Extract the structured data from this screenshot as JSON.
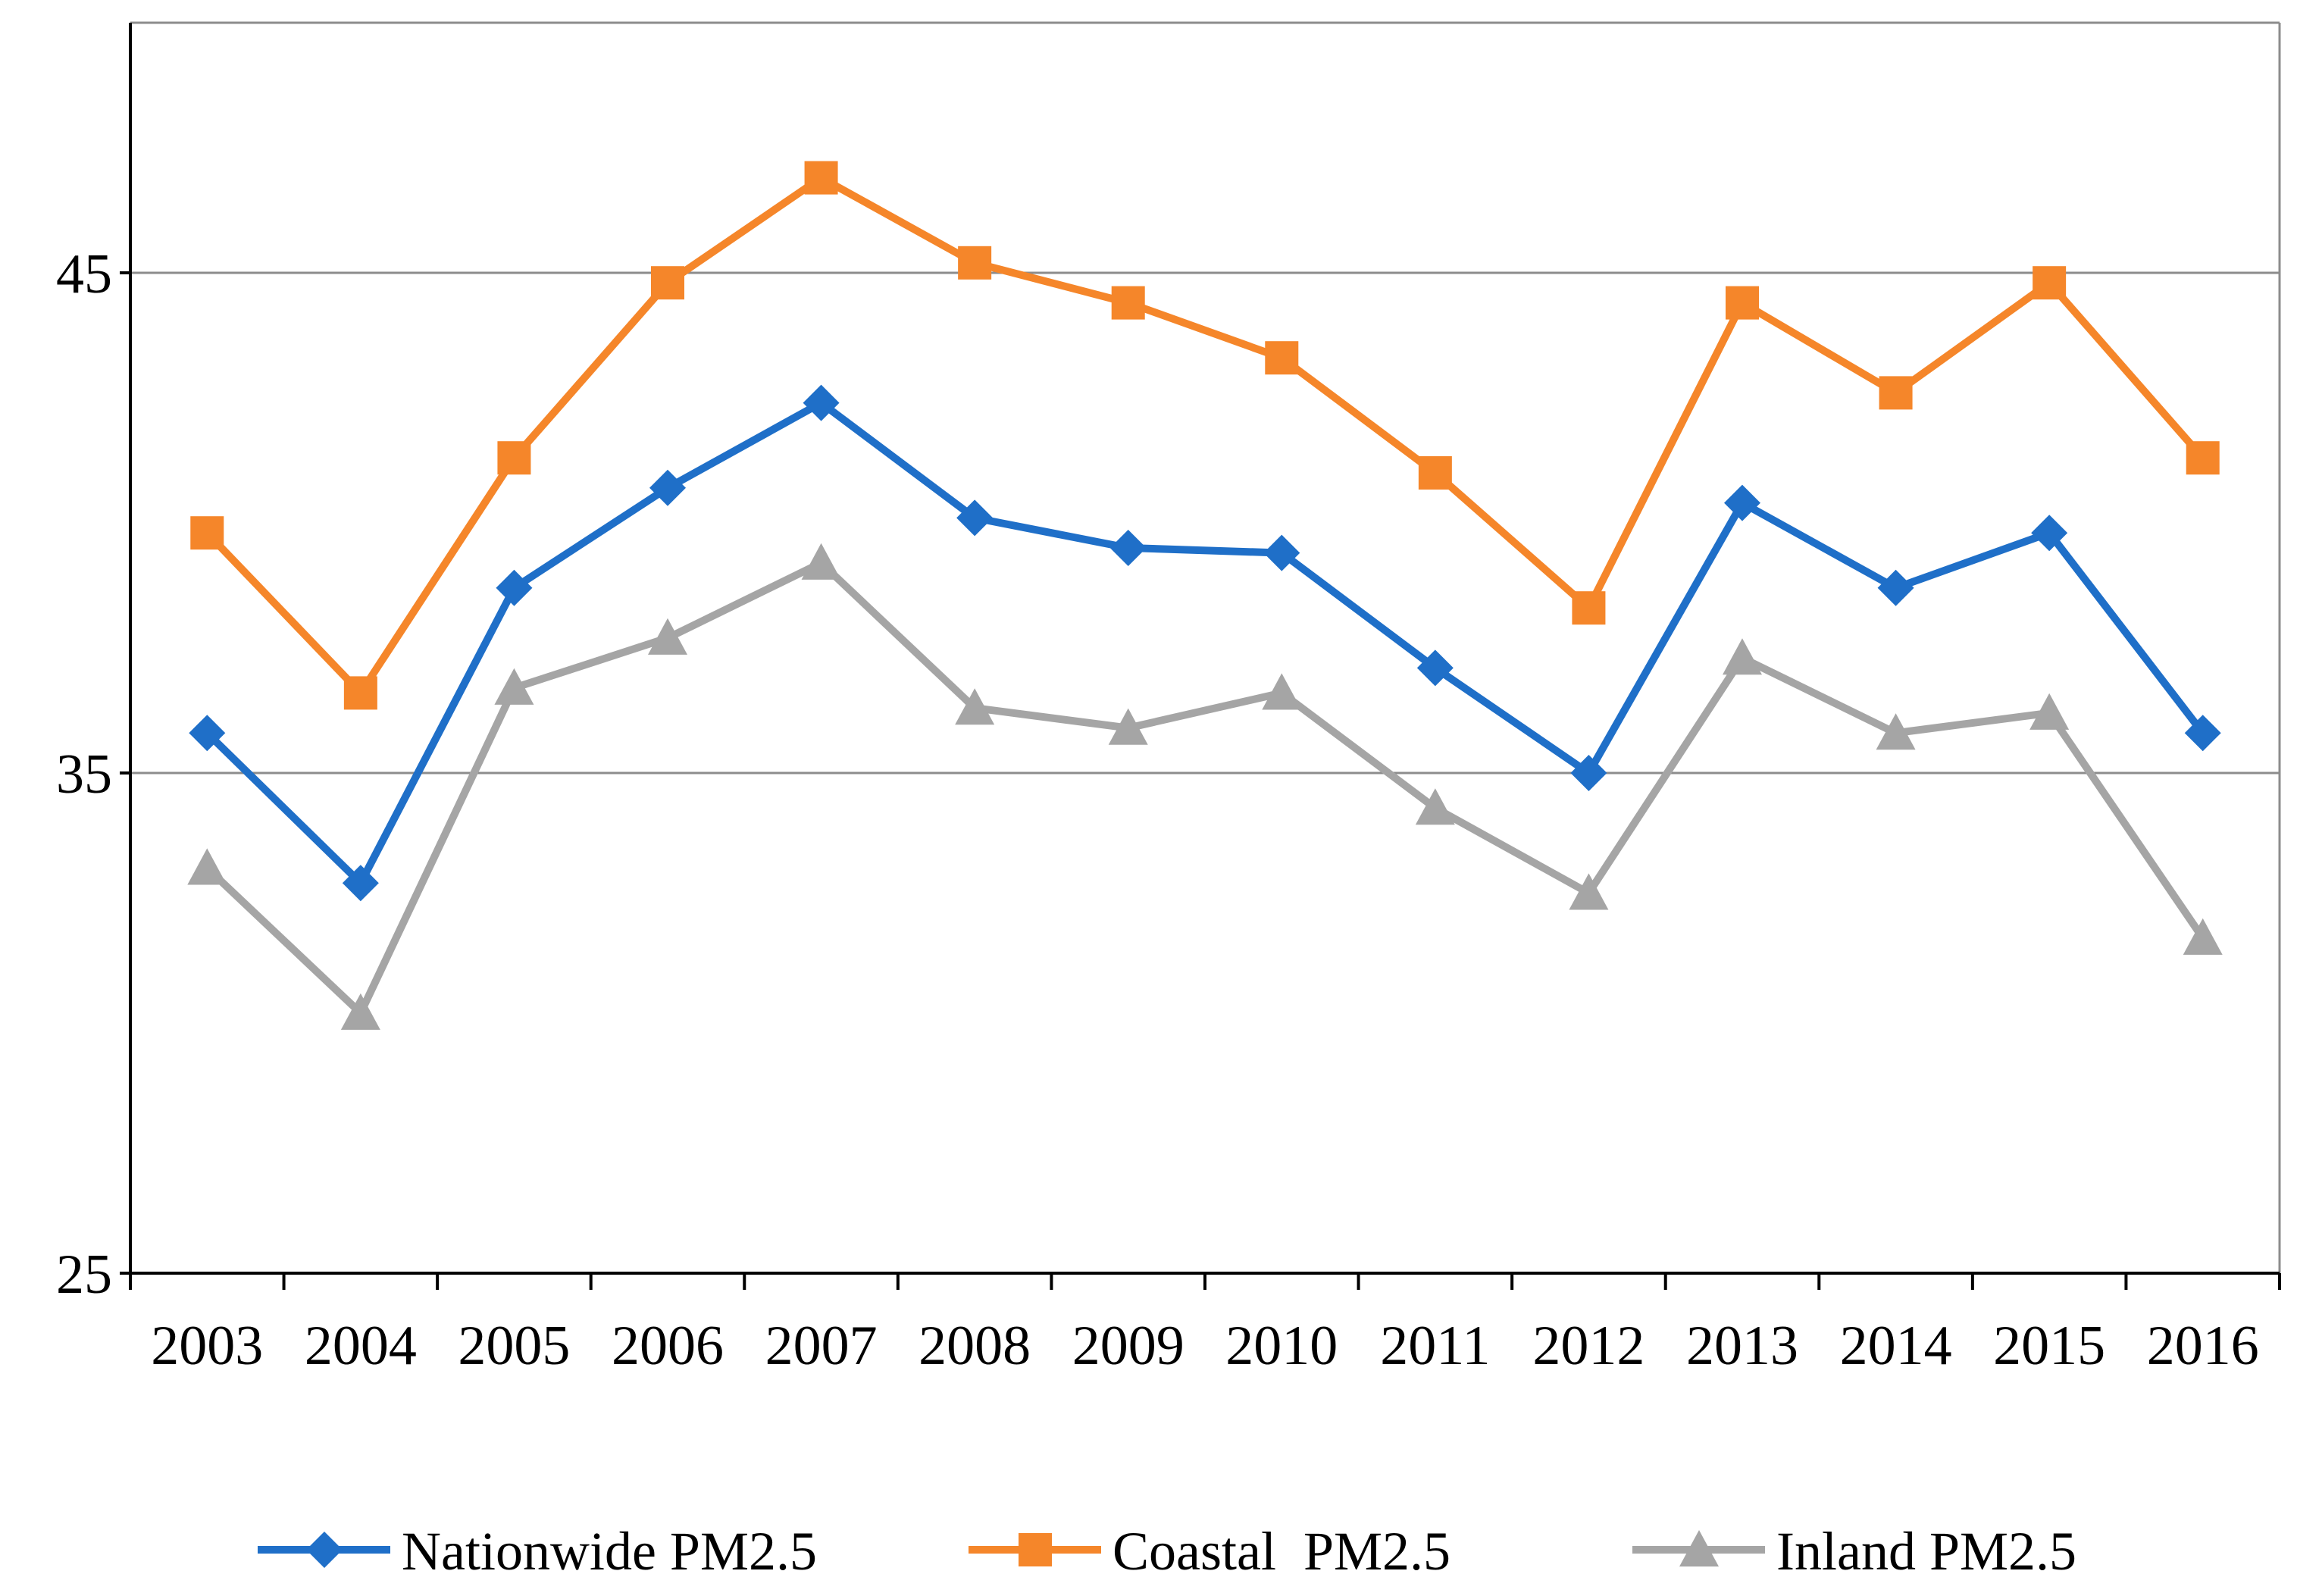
{
  "chart_data": {
    "type": "line",
    "title": "",
    "xlabel": "",
    "ylabel": "",
    "categories": [
      "2003",
      "2004",
      "2005",
      "2006",
      "2007",
      "2008",
      "2009",
      "2010",
      "2011",
      "2012",
      "2013",
      "2014",
      "2015",
      "2016"
    ],
    "ylim": [
      25,
      50
    ],
    "yticks": [
      25,
      35,
      45
    ],
    "grid": "horizontal",
    "legend_position": "bottom",
    "series": [
      {
        "name": "Nationwide PM2.5",
        "color": "#1f6fc8",
        "marker": "diamond",
        "values": [
          35.8,
          32.8,
          38.7,
          40.7,
          42.4,
          40.1,
          39.5,
          39.4,
          37.1,
          35.0,
          40.4,
          38.7,
          39.8,
          35.8
        ]
      },
      {
        "name": "Coastal  PM2.5",
        "color": "#f5862a",
        "marker": "square",
        "values": [
          39.8,
          36.6,
          41.3,
          44.8,
          46.9,
          45.2,
          44.4,
          43.3,
          41.0,
          38.3,
          44.4,
          42.6,
          44.8,
          41.3
        ]
      },
      {
        "name": "Inland PM2.5",
        "color": "#a5a5a5",
        "marker": "triangle",
        "values": [
          33.1,
          30.2,
          36.7,
          37.7,
          39.2,
          36.3,
          35.9,
          36.6,
          34.3,
          32.6,
          37.3,
          35.8,
          36.2,
          31.7
        ]
      }
    ]
  }
}
